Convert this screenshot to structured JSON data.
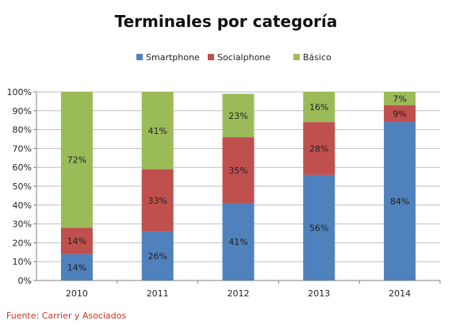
{
  "chart_data": {
    "type": "bar",
    "stacked": true,
    "title": "Terminales por categoría",
    "categories": [
      "2010",
      "2011",
      "2012",
      "2013",
      "2014"
    ],
    "series": [
      {
        "name": "Smartphone",
        "color": "#4f81bd",
        "values": [
          14,
          26,
          41,
          56,
          84
        ]
      },
      {
        "name": "Socialphone",
        "color": "#c0504d",
        "values": [
          14,
          33,
          35,
          28,
          9
        ]
      },
      {
        "name": "Básico",
        "color": "#9bbb59",
        "values": [
          72,
          41,
          23,
          16,
          7
        ]
      }
    ],
    "ylim": [
      0,
      100
    ],
    "yticks": [
      "0%",
      "10%",
      "20%",
      "30%",
      "40%",
      "50%",
      "60%",
      "70%",
      "80%",
      "90%",
      "100%"
    ],
    "grid": true,
    "legend_position": "top",
    "value_suffix": "%"
  },
  "footer": {
    "source": "Fuente: Carrier y Asociados"
  }
}
